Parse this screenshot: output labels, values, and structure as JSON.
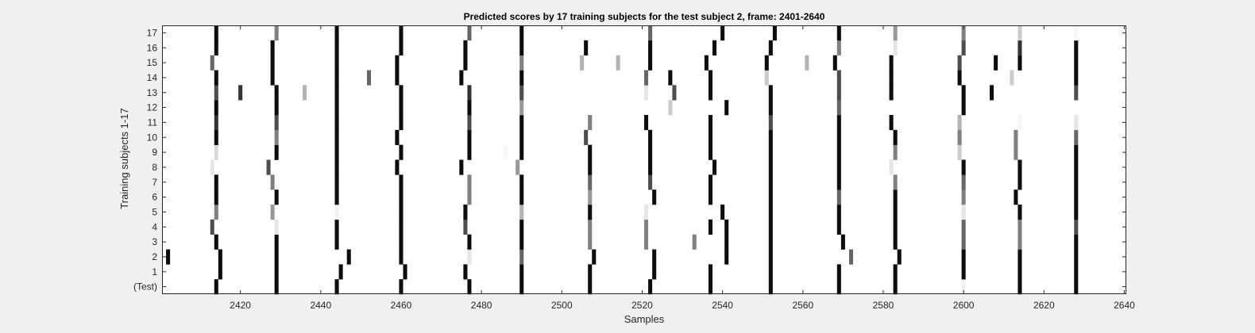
{
  "chart_data": {
    "type": "heatmap",
    "title": "Predicted scores by 17 training subjects for the test subject 2, frame: 2401-2640",
    "xlabel": "Samples",
    "ylabel": "Training subjects 1-17",
    "xlim": [
      2401,
      2640
    ],
    "x_ticks": [
      2420,
      2440,
      2460,
      2480,
      2500,
      2520,
      2540,
      2560,
      2580,
      2600,
      2620,
      2640
    ],
    "row_labels": [
      "(Test)",
      "1",
      "2",
      "3",
      "4",
      "5",
      "6",
      "7",
      "8",
      "9",
      "10",
      "11",
      "12",
      "13",
      "14",
      "15",
      "16",
      "17"
    ],
    "colormap": "gray (0 = black spike, 1 = white background)",
    "grid": false,
    "spikes": [
      [
        [
          2414,
          0.05
        ],
        [
          2429,
          0.05
        ],
        [
          2444,
          0.05
        ],
        [
          2460,
          0.05
        ],
        [
          2477,
          0.05
        ],
        [
          2490,
          0.05
        ],
        [
          2507,
          0.05
        ],
        [
          2522,
          0.05
        ],
        [
          2537,
          0.05
        ],
        [
          2552,
          0.05
        ],
        [
          2569,
          0.05
        ],
        [
          2583,
          0.05
        ],
        [
          2600,
          0.95
        ],
        [
          2614,
          0.05
        ],
        [
          2628,
          0.05
        ],
        [
          2642,
          0.05
        ]
      ],
      [
        [
          2415,
          0.05
        ],
        [
          2429,
          0.05
        ],
        [
          2445,
          0.05
        ],
        [
          2461,
          0.05
        ],
        [
          2476,
          0.05
        ],
        [
          2490,
          0.05
        ],
        [
          2507,
          0.05
        ],
        [
          2523,
          0.05
        ],
        [
          2537,
          0.05
        ],
        [
          2552,
          0.05
        ],
        [
          2569,
          0.05
        ],
        [
          2583,
          0.05
        ],
        [
          2600,
          0.05
        ],
        [
          2614,
          0.05
        ],
        [
          2628,
          0.05
        ],
        [
          2642,
          0.05
        ]
      ],
      [
        [
          2402,
          0.05
        ],
        [
          2415,
          0.05
        ],
        [
          2429,
          0.05
        ],
        [
          2447,
          0.05
        ],
        [
          2460,
          0.05
        ],
        [
          2477,
          0.9
        ],
        [
          2490,
          0.4
        ],
        [
          2508,
          0.05
        ],
        [
          2523,
          0.05
        ],
        [
          2541,
          0.05
        ],
        [
          2552,
          0.05
        ],
        [
          2572,
          0.4
        ],
        [
          2584,
          0.05
        ],
        [
          2600,
          0.05
        ],
        [
          2614,
          0.05
        ],
        [
          2628,
          0.05
        ],
        [
          2642,
          0.05
        ]
      ],
      [
        [
          2414,
          0.05
        ],
        [
          2429,
          0.05
        ],
        [
          2444,
          0.05
        ],
        [
          2460,
          0.05
        ],
        [
          2477,
          0.05
        ],
        [
          2490,
          0.05
        ],
        [
          2507,
          0.5
        ],
        [
          2521,
          0.5
        ],
        [
          2533,
          0.5
        ],
        [
          2541,
          0.05
        ],
        [
          2552,
          0.05
        ],
        [
          2570,
          0.05
        ],
        [
          2583,
          0.05
        ],
        [
          2600,
          0.4
        ],
        [
          2614,
          0.5
        ],
        [
          2628,
          0.05
        ],
        [
          2642,
          0.2
        ]
      ],
      [
        [
          2413,
          0.3
        ],
        [
          2429,
          0.9
        ],
        [
          2444,
          0.05
        ],
        [
          2460,
          0.05
        ],
        [
          2476,
          0.3
        ],
        [
          2490,
          0.05
        ],
        [
          2507,
          0.5
        ],
        [
          2521,
          0.5
        ],
        [
          2537,
          0.05
        ],
        [
          2541,
          0.05
        ],
        [
          2552,
          0.05
        ],
        [
          2569,
          0.05
        ],
        [
          2583,
          0.05
        ],
        [
          2600,
          0.4
        ],
        [
          2614,
          0.5
        ],
        [
          2628,
          0.3
        ],
        [
          2642,
          0.1
        ]
      ],
      [
        [
          2414,
          0.5
        ],
        [
          2428,
          0.6
        ],
        [
          2444,
          0.95
        ],
        [
          2460,
          0.05
        ],
        [
          2476,
          0.05
        ],
        [
          2490,
          0.7
        ],
        [
          2507,
          0.05
        ],
        [
          2521,
          0.9
        ],
        [
          2540,
          0.05
        ],
        [
          2552,
          0.05
        ],
        [
          2569,
          0.05
        ],
        [
          2583,
          0.05
        ],
        [
          2600,
          0.9
        ],
        [
          2614,
          0.05
        ],
        [
          2628,
          0.05
        ],
        [
          2642,
          0.05
        ]
      ],
      [
        [
          2414,
          0.05
        ],
        [
          2429,
          0.05
        ],
        [
          2444,
          0.05
        ],
        [
          2460,
          0.05
        ],
        [
          2477,
          0.5
        ],
        [
          2490,
          0.05
        ],
        [
          2507,
          0.6
        ],
        [
          2523,
          0.05
        ],
        [
          2537,
          0.05
        ],
        [
          2552,
          0.05
        ],
        [
          2569,
          0.4
        ],
        [
          2583,
          0.05
        ],
        [
          2600,
          0.5
        ],
        [
          2613,
          0.05
        ],
        [
          2628,
          0.05
        ],
        [
          2642,
          0.05
        ]
      ],
      [
        [
          2414,
          0.05
        ],
        [
          2428,
          0.5
        ],
        [
          2444,
          0.05
        ],
        [
          2460,
          0.05
        ],
        [
          2477,
          0.5
        ],
        [
          2490,
          0.05
        ],
        [
          2507,
          0.4
        ],
        [
          2522,
          0.3
        ],
        [
          2537,
          0.05
        ],
        [
          2552,
          0.05
        ],
        [
          2569,
          0.05
        ],
        [
          2583,
          0.5
        ],
        [
          2600,
          0.4
        ],
        [
          2614,
          0.05
        ],
        [
          2628,
          0.05
        ],
        [
          2642,
          0.05
        ]
      ],
      [
        [
          2413,
          0.9
        ],
        [
          2427,
          0.3
        ],
        [
          2444,
          0.05
        ],
        [
          2459,
          0.05
        ],
        [
          2475,
          0.05
        ],
        [
          2489,
          0.6
        ],
        [
          2507,
          0.05
        ],
        [
          2522,
          0.05
        ],
        [
          2538,
          0.05
        ],
        [
          2552,
          0.05
        ],
        [
          2569,
          0.05
        ],
        [
          2582,
          0.9
        ],
        [
          2600,
          0.05
        ],
        [
          2614,
          0.05
        ],
        [
          2628,
          0.05
        ],
        [
          2642,
          0.05
        ]
      ],
      [
        [
          2414,
          0.85
        ],
        [
          2429,
          0.05
        ],
        [
          2444,
          0.05
        ],
        [
          2460,
          0.05
        ],
        [
          2477,
          0.05
        ],
        [
          2486,
          0.97
        ],
        [
          2490,
          0.05
        ],
        [
          2507,
          0.05
        ],
        [
          2522,
          0.05
        ],
        [
          2537,
          0.05
        ],
        [
          2552,
          0.05
        ],
        [
          2569,
          0.05
        ],
        [
          2583,
          0.5
        ],
        [
          2599,
          0.8
        ],
        [
          2613,
          0.5
        ],
        [
          2628,
          0.05
        ],
        [
          2642,
          0.05
        ]
      ],
      [
        [
          2414,
          0.05
        ],
        [
          2429,
          0.5
        ],
        [
          2444,
          0.05
        ],
        [
          2459,
          0.05
        ],
        [
          2477,
          0.05
        ],
        [
          2490,
          0.05
        ],
        [
          2506,
          0.3
        ],
        [
          2522,
          0.05
        ],
        [
          2537,
          0.05
        ],
        [
          2552,
          0.05
        ],
        [
          2569,
          0.05
        ],
        [
          2583,
          0.05
        ],
        [
          2599,
          0.5
        ],
        [
          2613,
          0.5
        ],
        [
          2628,
          0.4
        ],
        [
          2642,
          0.05
        ]
      ],
      [
        [
          2414,
          0.2
        ],
        [
          2429,
          0.3
        ],
        [
          2444,
          0.05
        ],
        [
          2460,
          0.05
        ],
        [
          2477,
          0.3
        ],
        [
          2490,
          0.05
        ],
        [
          2507,
          0.5
        ],
        [
          2521,
          0.05
        ],
        [
          2537,
          0.05
        ],
        [
          2552,
          0.3
        ],
        [
          2569,
          0.05
        ],
        [
          2582,
          0.05
        ],
        [
          2599,
          0.7
        ],
        [
          2614,
          0.97
        ],
        [
          2628,
          0.9
        ],
        [
          2642,
          0.05
        ]
      ],
      [
        [
          2414,
          0.05
        ],
        [
          2429,
          0.05
        ],
        [
          2444,
          0.05
        ],
        [
          2460,
          0.05
        ],
        [
          2477,
          0.05
        ],
        [
          2490,
          0.6
        ],
        [
          2527,
          0.8
        ],
        [
          2541,
          0.05
        ],
        [
          2552,
          0.05
        ],
        [
          2569,
          0.4
        ],
        [
          2600,
          0.05
        ],
        [
          2642,
          0.5
        ]
      ],
      [
        [
          2414,
          0.3
        ],
        [
          2420,
          0.2
        ],
        [
          2429,
          0.05
        ],
        [
          2436,
          0.7
        ],
        [
          2444,
          0.05
        ],
        [
          2460,
          0.05
        ],
        [
          2477,
          0.2
        ],
        [
          2490,
          0.3
        ],
        [
          2521,
          0.9
        ],
        [
          2528,
          0.3
        ],
        [
          2537,
          0.05
        ],
        [
          2552,
          0.05
        ],
        [
          2569,
          0.3
        ],
        [
          2582,
          0.05
        ],
        [
          2600,
          0.05
        ],
        [
          2607,
          0.05
        ],
        [
          2628,
          0.3
        ],
        [
          2642,
          0.05
        ]
      ],
      [
        [
          2414,
          0.05
        ],
        [
          2428,
          0.05
        ],
        [
          2444,
          0.05
        ],
        [
          2452,
          0.4
        ],
        [
          2459,
          0.05
        ],
        [
          2475,
          0.05
        ],
        [
          2490,
          0.05
        ],
        [
          2521,
          0.4
        ],
        [
          2527,
          0.05
        ],
        [
          2537,
          0.05
        ],
        [
          2551,
          0.8
        ],
        [
          2569,
          0.3
        ],
        [
          2582,
          0.05
        ],
        [
          2599,
          0.05
        ],
        [
          2612,
          0.8
        ],
        [
          2628,
          0.05
        ],
        [
          2642,
          0.05
        ]
      ],
      [
        [
          2413,
          0.4
        ],
        [
          2428,
          0.05
        ],
        [
          2444,
          0.05
        ],
        [
          2459,
          0.05
        ],
        [
          2476,
          0.05
        ],
        [
          2490,
          0.5
        ],
        [
          2505,
          0.7
        ],
        [
          2514,
          0.7
        ],
        [
          2522,
          0.05
        ],
        [
          2536,
          0.05
        ],
        [
          2551,
          0.05
        ],
        [
          2561,
          0.7
        ],
        [
          2568,
          0.05
        ],
        [
          2582,
          0.05
        ],
        [
          2599,
          0.3
        ],
        [
          2608,
          0.05
        ],
        [
          2614,
          0.05
        ],
        [
          2628,
          0.05
        ],
        [
          2641,
          0.05
        ]
      ],
      [
        [
          2414,
          0.05
        ],
        [
          2428,
          0.05
        ],
        [
          2444,
          0.05
        ],
        [
          2460,
          0.05
        ],
        [
          2476,
          0.05
        ],
        [
          2490,
          0.05
        ],
        [
          2506,
          0.05
        ],
        [
          2522,
          0.05
        ],
        [
          2538,
          0.05
        ],
        [
          2552,
          0.05
        ],
        [
          2569,
          0.5
        ],
        [
          2583,
          0.9
        ],
        [
          2600,
          0.3
        ],
        [
          2614,
          0.2
        ],
        [
          2628,
          0.05
        ],
        [
          2642,
          0.05
        ]
      ],
      [
        [
          2414,
          0.05
        ],
        [
          2429,
          0.5
        ],
        [
          2444,
          0.05
        ],
        [
          2460,
          0.05
        ],
        [
          2477,
          0.4
        ],
        [
          2490,
          0.05
        ],
        [
          2522,
          0.4
        ],
        [
          2540,
          0.05
        ],
        [
          2553,
          0.05
        ],
        [
          2569,
          0.05
        ],
        [
          2583,
          0.6
        ],
        [
          2600,
          0.5
        ],
        [
          2614,
          0.8
        ],
        [
          2628,
          0.97
        ],
        [
          2642,
          0.2
        ]
      ]
    ]
  }
}
